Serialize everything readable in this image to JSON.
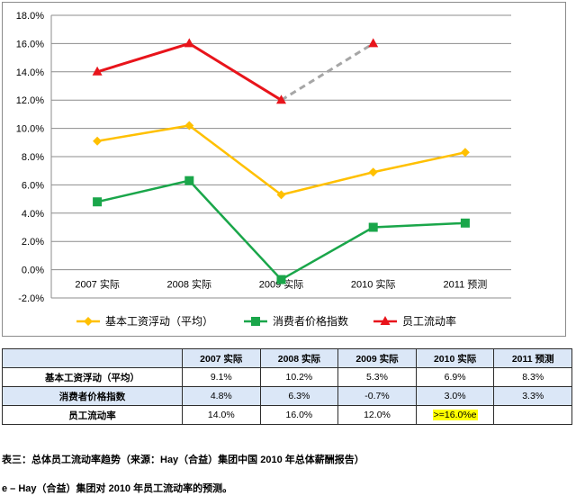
{
  "chart_data": {
    "type": "line",
    "categories": [
      "2007 实际",
      "2008 实际",
      "2009 实际",
      "2010 实际",
      "2011 预测"
    ],
    "y_ticks": [
      "-2.0%",
      "0.0%",
      "2.0%",
      "4.0%",
      "6.0%",
      "8.0%",
      "10.0%",
      "12.0%",
      "14.0%",
      "16.0%",
      "18.0%"
    ],
    "ylim": [
      -2,
      18
    ],
    "grid": true,
    "legend_position": "bottom",
    "series": [
      {
        "name": "基本工资浮动（平均）",
        "values": [
          9.1,
          10.2,
          5.3,
          6.9,
          8.3
        ],
        "color": "#ffc000",
        "marker": "diamond"
      },
      {
        "name": "消费者价格指数",
        "values": [
          4.8,
          6.3,
          -0.7,
          3.0,
          3.3
        ],
        "color": "#1aa64a",
        "marker": "square"
      },
      {
        "name": "员工流动率",
        "values": [
          14.0,
          16.0,
          12.0,
          16.0,
          null
        ],
        "color": "#e8141b",
        "marker": "triangle",
        "dashed_from_index": 2,
        "dashed_color": "#a6a6a6",
        "solid_marker_indices": [
          0,
          1,
          2
        ]
      }
    ]
  },
  "table": {
    "headers": [
      "",
      "2007 实际",
      "2008 实际",
      "2009 实际",
      "2010 实际",
      "2011 预测"
    ],
    "rows": [
      {
        "label": "基本工资浮动（平均）",
        "cells": [
          "9.1%",
          "10.2%",
          "5.3%",
          "6.9%",
          "8.3%"
        ]
      },
      {
        "label": "消费者价格指数",
        "cells": [
          "4.8%",
          "6.3%",
          "-0.7%",
          "3.0%",
          "3.3%"
        ]
      },
      {
        "label": "员工流动率",
        "cells": [
          "14.0%",
          "16.0%",
          "12.0%",
          ">=16.0%e",
          ""
        ]
      }
    ]
  },
  "caption": "表三：总体员工流动率趋势（来源：Hay（合益）集团中国 2010 年总体薪酬报告）",
  "footnote": "e – Hay（合益）集团对 2010 年员工流动率的预测。"
}
